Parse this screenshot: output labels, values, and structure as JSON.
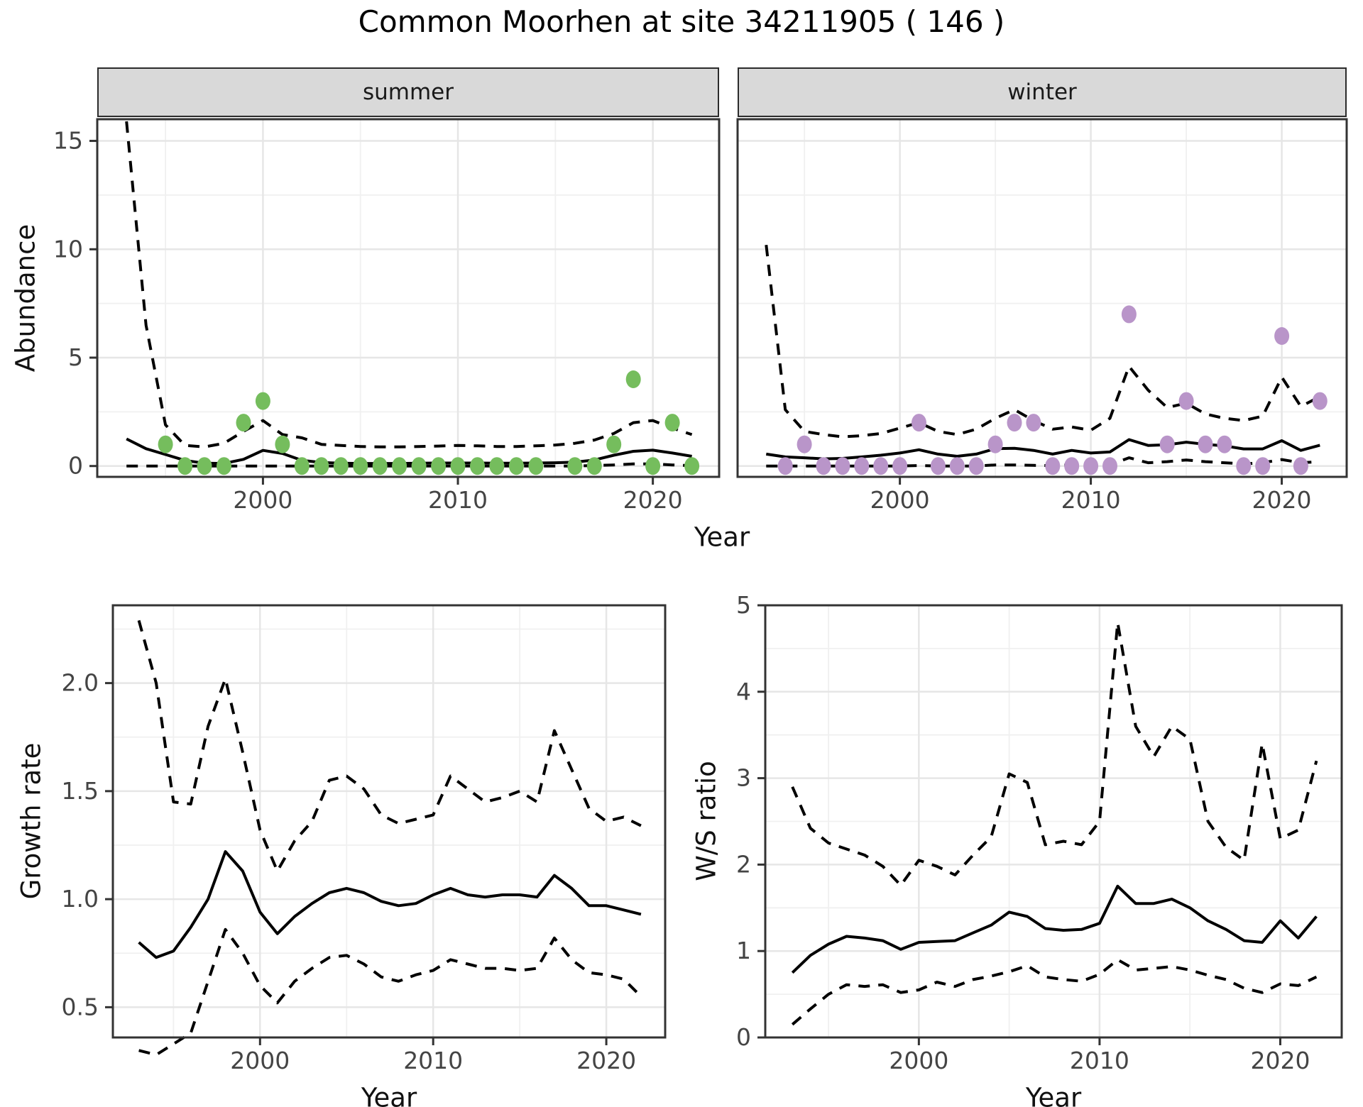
{
  "title": "Common Moorhen at site 34211905 ( 146 )",
  "colors": {
    "summer_point": "#75BD5D",
    "winter_point": "#B995C9",
    "line": "#000000",
    "strip_bg": "#D9D9D9",
    "panel_border": "#333333",
    "grid_major": "#E6E6E6",
    "grid_minor": "#F0F0F0",
    "tick_text": "#444444"
  },
  "labels": {
    "facet_summer": "summer",
    "facet_winter": "winter",
    "y_axis_top": "Abundance",
    "y_axis_growth": "Growth rate",
    "y_axis_ws": "W/S ratio",
    "x_axis_top": "Year",
    "x_axis_growth": "Year",
    "x_axis_ws": "Year"
  },
  "chart_data": [
    {
      "id": "abundance-summer",
      "type": "line",
      "facet": "summer",
      "xlabel": "Year",
      "ylabel": "Abundance",
      "xlim": [
        1991.5,
        2023.4
      ],
      "ylim": [
        -0.5,
        16.0
      ],
      "xticks": {
        "values": [
          2000,
          2010,
          2020
        ],
        "labels": [
          "2000",
          "2010",
          "2020"
        ]
      },
      "yticks": {
        "values": [
          0,
          5,
          10,
          15
        ],
        "labels": [
          "0",
          "5",
          "10",
          "15"
        ]
      },
      "years": [
        1993,
        1994,
        1995,
        1996,
        1997,
        1998,
        1999,
        2000,
        2001,
        2002,
        2003,
        2004,
        2005,
        2006,
        2007,
        2008,
        2009,
        2010,
        2011,
        2012,
        2013,
        2014,
        2015,
        2016,
        2017,
        2018,
        2019,
        2020,
        2021,
        2022
      ],
      "series": [
        {
          "name": "mean",
          "style": "solid",
          "values": [
            1.25,
            0.8,
            0.53,
            0.26,
            0.13,
            0.12,
            0.31,
            0.72,
            0.58,
            0.26,
            0.16,
            0.13,
            0.12,
            0.12,
            0.12,
            0.13,
            0.14,
            0.14,
            0.14,
            0.13,
            0.13,
            0.14,
            0.15,
            0.18,
            0.28,
            0.5,
            0.68,
            0.73,
            0.6,
            0.45
          ]
        },
        {
          "name": "upper_ci",
          "style": "dashed",
          "values": [
            15.9,
            6.5,
            1.9,
            0.95,
            0.88,
            1.05,
            1.6,
            2.1,
            1.45,
            1.3,
            1.0,
            0.95,
            0.9,
            0.88,
            0.88,
            0.9,
            0.92,
            0.95,
            0.93,
            0.9,
            0.9,
            0.93,
            0.97,
            1.05,
            1.2,
            1.5,
            2.0,
            2.1,
            1.75,
            1.45
          ]
        },
        {
          "name": "lower_ci",
          "style": "dashed",
          "values": [
            0,
            0,
            0,
            0,
            0,
            0,
            0,
            0,
            0,
            0,
            0,
            0,
            0,
            0,
            0,
            0,
            0,
            0,
            0,
            0,
            0,
            0,
            0,
            0,
            0.02,
            0.05,
            0.1,
            0.1,
            0.05,
            0.02
          ]
        }
      ],
      "points": {
        "color_key": "summer_point",
        "years": [
          1995,
          1996,
          1997,
          1998,
          1999,
          2000,
          2001,
          2002,
          2003,
          2004,
          2005,
          2006,
          2007,
          2008,
          2009,
          2010,
          2011,
          2012,
          2013,
          2014,
          2016,
          2017,
          2018,
          2019,
          2020,
          2021,
          2022
        ],
        "values": [
          1,
          0,
          0,
          0,
          2,
          3,
          1,
          0,
          0,
          0,
          0,
          0,
          0,
          0,
          0,
          0,
          0,
          0,
          0,
          0,
          0,
          0,
          1,
          4,
          0,
          2,
          0
        ]
      }
    },
    {
      "id": "abundance-winter",
      "type": "line",
      "facet": "winter",
      "xlabel": "Year",
      "ylabel": "Abundance",
      "xlim": [
        1991.5,
        2023.4
      ],
      "ylim": [
        -0.5,
        16.0
      ],
      "xticks": {
        "values": [
          2000,
          2010,
          2020
        ],
        "labels": [
          "2000",
          "2010",
          "2020"
        ]
      },
      "yticks": {
        "values": [
          0,
          5,
          10,
          15
        ],
        "labels": [
          "0",
          "5",
          "10",
          "15"
        ]
      },
      "years": [
        1993,
        1994,
        1995,
        1996,
        1997,
        1998,
        1999,
        2000,
        2001,
        2002,
        2003,
        2004,
        2005,
        2006,
        2007,
        2008,
        2009,
        2010,
        2011,
        2012,
        2013,
        2014,
        2015,
        2016,
        2017,
        2018,
        2019,
        2020,
        2021,
        2022
      ],
      "series": [
        {
          "name": "mean",
          "style": "solid",
          "values": [
            0.55,
            0.42,
            0.38,
            0.33,
            0.35,
            0.42,
            0.5,
            0.6,
            0.75,
            0.55,
            0.45,
            0.55,
            0.8,
            0.82,
            0.72,
            0.55,
            0.72,
            0.6,
            0.65,
            1.22,
            0.95,
            0.98,
            1.1,
            1.0,
            0.93,
            0.79,
            0.79,
            1.17,
            0.72,
            0.96
          ]
        },
        {
          "name": "upper_ci",
          "style": "dashed",
          "values": [
            10.2,
            2.6,
            1.6,
            1.45,
            1.35,
            1.4,
            1.5,
            1.75,
            2.0,
            1.6,
            1.45,
            1.7,
            2.2,
            2.6,
            2.1,
            1.7,
            1.8,
            1.65,
            2.2,
            4.6,
            3.5,
            2.7,
            2.9,
            2.4,
            2.2,
            2.1,
            2.3,
            4.1,
            2.75,
            3.2
          ]
        },
        {
          "name": "lower_ci",
          "style": "dashed",
          "values": [
            0,
            0,
            0,
            0,
            0,
            0,
            0,
            0,
            0.02,
            0,
            0,
            0,
            0.05,
            0.05,
            0.03,
            0.02,
            0.05,
            0.03,
            0.05,
            0.38,
            0.15,
            0.2,
            0.28,
            0.2,
            0.15,
            0.1,
            0.15,
            0.3,
            0.15,
            0.2
          ]
        }
      ],
      "points": {
        "color_key": "winter_point",
        "years": [
          1994,
          1995,
          1996,
          1997,
          1998,
          1999,
          2000,
          2001,
          2002,
          2003,
          2004,
          2005,
          2006,
          2007,
          2008,
          2009,
          2010,
          2011,
          2012,
          2014,
          2015,
          2016,
          2017,
          2018,
          2019,
          2020,
          2021,
          2022
        ],
        "values": [
          0,
          1,
          0,
          0,
          0,
          0,
          0,
          2,
          0,
          0,
          0,
          1,
          2,
          2,
          0,
          0,
          0,
          0,
          7,
          1,
          3,
          1,
          1,
          0,
          0,
          6,
          0,
          3
        ]
      }
    },
    {
      "id": "growth",
      "type": "line",
      "facet": null,
      "xlabel": "Year",
      "ylabel": "Growth rate",
      "xlim": [
        1991.5,
        2023.4
      ],
      "ylim": [
        0.36,
        2.36
      ],
      "xticks": {
        "values": [
          2000,
          2010,
          2020
        ],
        "labels": [
          "2000",
          "2010",
          "2020"
        ]
      },
      "yticks": {
        "values": [
          0.5,
          1.0,
          1.5,
          2.0
        ],
        "labels": [
          "0.5",
          "1.0",
          "1.5",
          "2.0"
        ]
      },
      "years": [
        1993,
        1994,
        1995,
        1996,
        1997,
        1998,
        1999,
        2000,
        2001,
        2002,
        2003,
        2004,
        2005,
        2006,
        2007,
        2008,
        2009,
        2010,
        2011,
        2012,
        2013,
        2014,
        2015,
        2016,
        2017,
        2018,
        2019,
        2020,
        2021,
        2022
      ],
      "series": [
        {
          "name": "mean",
          "style": "solid",
          "values": [
            0.8,
            0.73,
            0.76,
            0.87,
            1.0,
            1.22,
            1.13,
            0.94,
            0.84,
            0.92,
            0.98,
            1.03,
            1.05,
            1.03,
            0.99,
            0.97,
            0.98,
            1.02,
            1.05,
            1.02,
            1.01,
            1.02,
            1.02,
            1.01,
            1.11,
            1.05,
            0.97,
            0.97,
            0.95,
            0.93
          ]
        },
        {
          "name": "upper_ci",
          "style": "dashed",
          "values": [
            2.29,
            2.0,
            1.45,
            1.44,
            1.8,
            2.02,
            1.68,
            1.32,
            1.13,
            1.27,
            1.36,
            1.55,
            1.57,
            1.51,
            1.39,
            1.35,
            1.37,
            1.39,
            1.57,
            1.51,
            1.45,
            1.47,
            1.5,
            1.45,
            1.78,
            1.6,
            1.42,
            1.36,
            1.38,
            1.34
          ]
        },
        {
          "name": "lower_ci",
          "style": "dashed",
          "values": [
            0.3,
            0.28,
            0.33,
            0.38,
            0.62,
            0.86,
            0.75,
            0.6,
            0.52,
            0.62,
            0.68,
            0.73,
            0.74,
            0.7,
            0.64,
            0.62,
            0.65,
            0.67,
            0.72,
            0.7,
            0.68,
            0.68,
            0.67,
            0.68,
            0.82,
            0.72,
            0.66,
            0.65,
            0.63,
            0.55
          ]
        }
      ],
      "points": null
    },
    {
      "id": "ws",
      "type": "line",
      "facet": null,
      "xlabel": "Year",
      "ylabel": "W/S ratio",
      "xlim": [
        1991.5,
        2023.4
      ],
      "ylim": [
        0,
        5
      ],
      "xticks": {
        "values": [
          2000,
          2010,
          2020
        ],
        "labels": [
          "2000",
          "2010",
          "2020"
        ]
      },
      "yticks": {
        "values": [
          0,
          1,
          2,
          3,
          4,
          5
        ],
        "labels": [
          "0",
          "1",
          "2",
          "3",
          "4",
          "5"
        ]
      },
      "years": [
        1993,
        1994,
        1995,
        1996,
        1997,
        1998,
        1999,
        2000,
        2001,
        2002,
        2003,
        2004,
        2005,
        2006,
        2007,
        2008,
        2009,
        2010,
        2011,
        2012,
        2013,
        2014,
        2015,
        2016,
        2017,
        2018,
        2019,
        2020,
        2021,
        2022
      ],
      "series": [
        {
          "name": "mean",
          "style": "solid",
          "values": [
            0.75,
            0.95,
            1.08,
            1.17,
            1.15,
            1.12,
            1.02,
            1.1,
            1.11,
            1.12,
            1.21,
            1.3,
            1.45,
            1.4,
            1.26,
            1.24,
            1.25,
            1.32,
            1.75,
            1.55,
            1.55,
            1.6,
            1.5,
            1.35,
            1.25,
            1.12,
            1.1,
            1.35,
            1.15,
            1.4
          ]
        },
        {
          "name": "upper_ci",
          "style": "dashed",
          "values": [
            2.9,
            2.42,
            2.25,
            2.18,
            2.11,
            1.98,
            1.76,
            2.05,
            1.98,
            1.88,
            2.11,
            2.32,
            3.05,
            2.95,
            2.23,
            2.27,
            2.23,
            2.5,
            4.8,
            3.6,
            3.25,
            3.6,
            3.45,
            2.5,
            2.2,
            2.05,
            3.4,
            2.3,
            2.4,
            3.2
          ]
        },
        {
          "name": "lower_ci",
          "style": "dashed",
          "values": [
            0.15,
            0.33,
            0.5,
            0.61,
            0.59,
            0.61,
            0.52,
            0.55,
            0.64,
            0.59,
            0.67,
            0.71,
            0.76,
            0.83,
            0.7,
            0.67,
            0.65,
            0.73,
            0.9,
            0.78,
            0.8,
            0.82,
            0.78,
            0.72,
            0.67,
            0.57,
            0.52,
            0.62,
            0.6,
            0.7
          ]
        }
      ],
      "points": null
    }
  ]
}
